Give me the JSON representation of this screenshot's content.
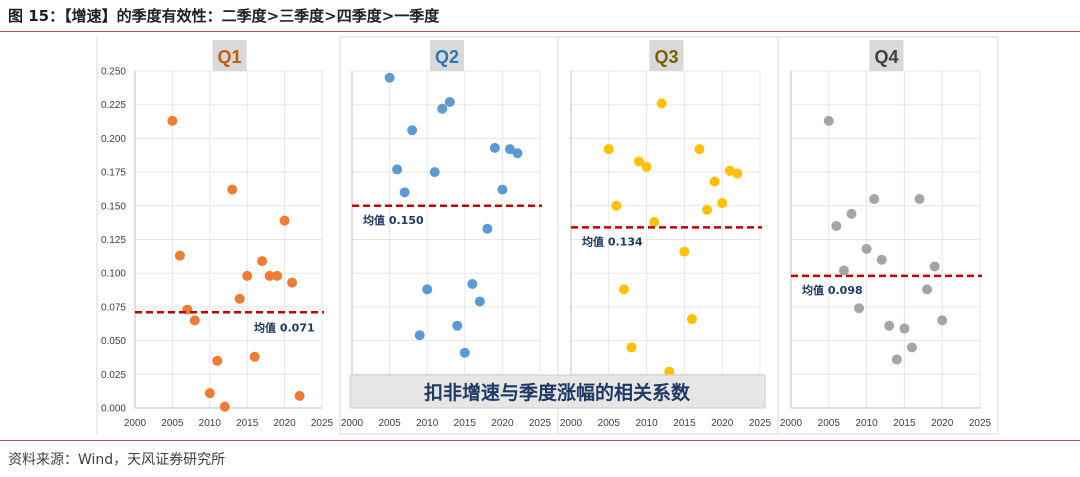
{
  "header": {
    "title": "图 15：【增速】的季度有效性：二季度>三季度>四季度>一季度"
  },
  "footer": {
    "source": "资料来源：Wind，天风证券研究所"
  },
  "colors": {
    "accent_rule": "#c0504d",
    "mean_line": "#c00000",
    "label_navy": "#1f3864"
  },
  "chart_data": {
    "type": "scatter",
    "ylim": [
      0,
      0.25
    ],
    "yticks": [
      "0.000",
      "0.025",
      "0.050",
      "0.075",
      "0.100",
      "0.125",
      "0.150",
      "0.175",
      "0.200",
      "0.225",
      "0.250"
    ],
    "xlim": [
      2000,
      2025
    ],
    "xticks": [
      "2000",
      "2005",
      "2010",
      "2015",
      "2020",
      "2025"
    ],
    "grid": true,
    "banner": "扣非增速与季度涨幅的相关系数",
    "series": [
      {
        "name": "Q1",
        "title_color": "#c55a11",
        "point_color": "#ed7d31",
        "mean": 0.071,
        "mean_label": "均值 0.071",
        "points": [
          [
            2005,
            0.213
          ],
          [
            2006,
            0.113
          ],
          [
            2007,
            0.073
          ],
          [
            2008,
            0.065
          ],
          [
            2010,
            0.011
          ],
          [
            2011,
            0.035
          ],
          [
            2012,
            0.001
          ],
          [
            2013,
            0.162
          ],
          [
            2014,
            0.081
          ],
          [
            2015,
            0.098
          ],
          [
            2016,
            0.038
          ],
          [
            2017,
            0.109
          ],
          [
            2018,
            0.098
          ],
          [
            2019,
            0.098
          ],
          [
            2020,
            0.139
          ],
          [
            2021,
            0.093
          ],
          [
            2022,
            0.009
          ]
        ]
      },
      {
        "name": "Q2",
        "title_color": "#2e75b6",
        "point_color": "#5b9bd5",
        "mean": 0.15,
        "mean_label": "均值 0.150",
        "points": [
          [
            2005,
            0.245
          ],
          [
            2006,
            0.177
          ],
          [
            2007,
            0.16
          ],
          [
            2008,
            0.206
          ],
          [
            2009,
            0.054
          ],
          [
            2010,
            0.088
          ],
          [
            2011,
            0.175
          ],
          [
            2012,
            0.222
          ],
          [
            2013,
            0.227
          ],
          [
            2014,
            0.061
          ],
          [
            2015,
            0.041
          ],
          [
            2016,
            0.092
          ],
          [
            2017,
            0.079
          ],
          [
            2018,
            0.133
          ],
          [
            2019,
            0.193
          ],
          [
            2020,
            0.162
          ],
          [
            2021,
            0.192
          ],
          [
            2022,
            0.189
          ]
        ]
      },
      {
        "name": "Q3",
        "title_color": "#7f6000",
        "point_color": "#ffc000",
        "mean": 0.134,
        "mean_label": "均值 0.134",
        "points": [
          [
            2005,
            0.192
          ],
          [
            2006,
            0.15
          ],
          [
            2007,
            0.088
          ],
          [
            2008,
            0.045
          ],
          [
            2009,
            0.183
          ],
          [
            2010,
            0.179
          ],
          [
            2011,
            0.138
          ],
          [
            2012,
            0.226
          ],
          [
            2013,
            0.027
          ],
          [
            2015,
            0.116
          ],
          [
            2016,
            0.066
          ],
          [
            2017,
            0.192
          ],
          [
            2018,
            0.147
          ],
          [
            2019,
            0.168
          ],
          [
            2020,
            0.152
          ],
          [
            2021,
            0.176
          ],
          [
            2022,
            0.174
          ]
        ]
      },
      {
        "name": "Q4",
        "title_color": "#404040",
        "point_color": "#a5a5a5",
        "mean": 0.098,
        "mean_label": "均值 0.098",
        "points": [
          [
            2005,
            0.213
          ],
          [
            2006,
            0.135
          ],
          [
            2007,
            0.102
          ],
          [
            2008,
            0.144
          ],
          [
            2009,
            0.074
          ],
          [
            2010,
            0.118
          ],
          [
            2011,
            0.155
          ],
          [
            2012,
            0.11
          ],
          [
            2013,
            0.061
          ],
          [
            2014,
            0.036
          ],
          [
            2015,
            0.059
          ],
          [
            2016,
            0.045
          ],
          [
            2017,
            0.155
          ],
          [
            2018,
            0.088
          ],
          [
            2019,
            0.105
          ],
          [
            2020,
            0.065
          ]
        ]
      }
    ]
  }
}
